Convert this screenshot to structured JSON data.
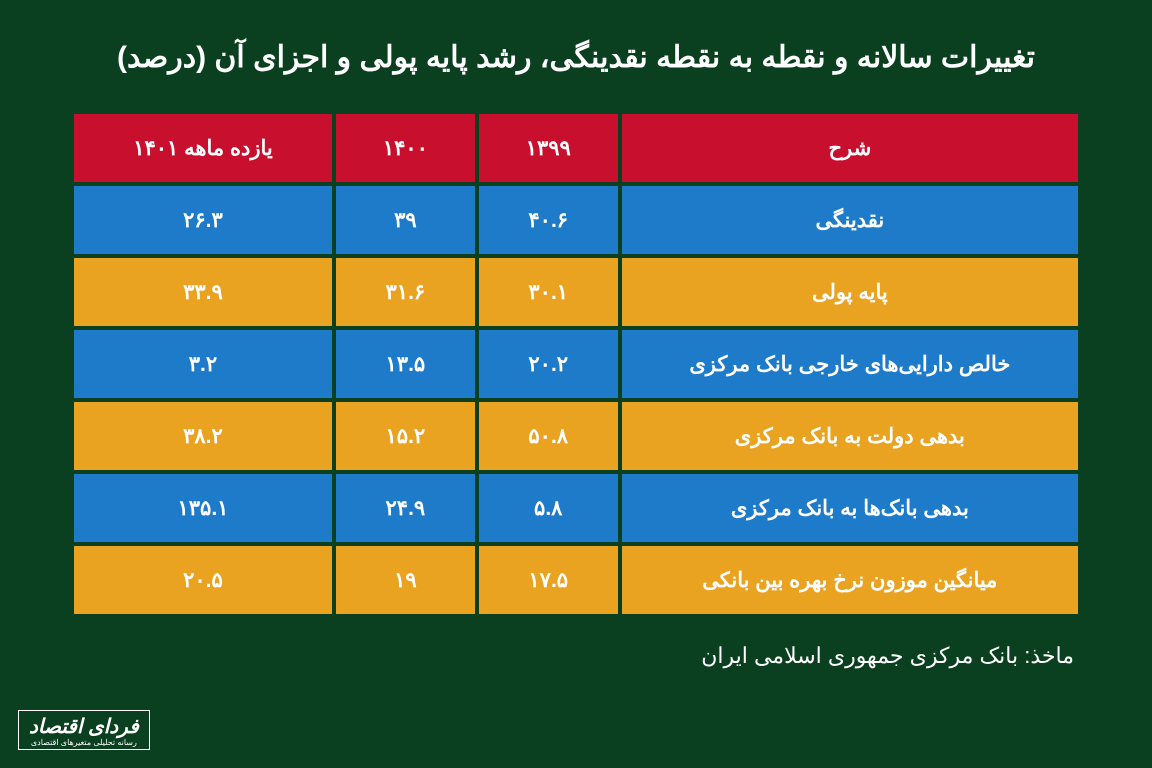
{
  "title": "تغییرات سالانه و نقطه به نقطه نقدینگی، رشد پایه پولی و اجزای آن (درصد)",
  "headers": {
    "desc": "شرح",
    "col1": "۱۳۹۹",
    "col2": "۱۴۰۰",
    "col3": "یازده ماهه ۱۴۰۱"
  },
  "rows": [
    {
      "label": "نقدینگی",
      "v1": "۴۰.۶",
      "v2": "۳۹",
      "v3": "۲۶.۳"
    },
    {
      "label": "پایه پولی",
      "v1": "۳۰.۱",
      "v2": "۳۱.۶",
      "v3": "۳۳.۹"
    },
    {
      "label": "خالص دارایی‌های خارجی بانک مرکزی",
      "v1": "۲۰.۲",
      "v2": "۱۳.۵",
      "v3": "۳.۲"
    },
    {
      "label": "بدهی دولت به بانک مرکزی",
      "v1": "۵۰.۸",
      "v2": "۱۵.۲",
      "v3": "۳۸.۲"
    },
    {
      "label": "بدهی بانک‌ها به بانک مرکزی",
      "v1": "۵.۸",
      "v2": "۲۴.۹",
      "v3": "۱۳۵.۱"
    },
    {
      "label": "میانگین موزون نرخ بهره بین بانکی",
      "v1": "۱۷.۵",
      "v2": "۱۹",
      "v3": "۲۰.۵"
    }
  ],
  "source": "ماخذ: بانک مرکزی جمهوری اسلامی ایران",
  "logo": {
    "main": "فردای اقتصاد",
    "sub": "رسانه تحلیلی متغیرهای اقتصادی"
  },
  "colors": {
    "background": "#0a4020",
    "header": "#c8102e",
    "row_blue": "#1d7bc9",
    "row_orange": "#eaa221",
    "text": "#ffffff"
  }
}
